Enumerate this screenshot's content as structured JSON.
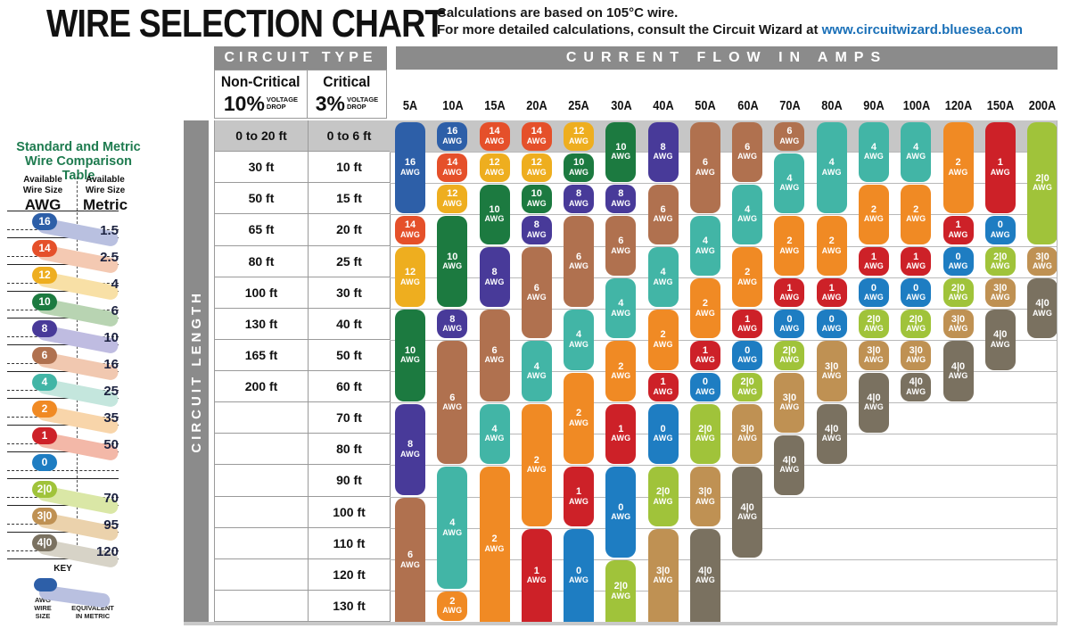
{
  "title": "WIRE SELECTION CHART",
  "subtitle": {
    "line1": "Calculations are based on 105°C wire.",
    "line2_prefix": "For more detailed calculations, consult the Circuit Wizard at ",
    "link": "www.circuitwizard.bluesea.com"
  },
  "comparison": {
    "title": "Standard and Metric\nWire Comparison Table",
    "available_header": "Available\nWire Size",
    "unit_awg": "AWG",
    "unit_metric": "Metric",
    "rows": [
      {
        "awg": "16",
        "metric": "1.5"
      },
      {
        "awg": "14",
        "metric": "2.5"
      },
      {
        "awg": "12",
        "metric": "4"
      },
      {
        "awg": "10",
        "metric": "6"
      },
      {
        "awg": "8",
        "metric": "10"
      },
      {
        "awg": "6",
        "metric": "16"
      },
      {
        "awg": "4",
        "metric": "25"
      },
      {
        "awg": "2",
        "metric": "35"
      },
      {
        "awg": "1",
        "metric": "50"
      },
      {
        "awg": "0",
        "metric": ""
      },
      {
        "awg": "2|0",
        "metric": "70"
      },
      {
        "awg": "3|0",
        "metric": "95"
      },
      {
        "awg": "4|0",
        "metric": "120"
      }
    ],
    "key": {
      "label": "KEY",
      "left": "AWG\nWIRE\nSIZE",
      "right": "CLOSEST\nEQUIVALENT\nIN METRIC"
    }
  },
  "table": {
    "circuit_type_label": "CIRCUIT TYPE",
    "current_flow_label": "CURRENT FLOW IN AMPS",
    "circuit_length_label": "CIRCUIT LENGTH",
    "non_critical_label": "Non-Critical",
    "non_critical_pct": "10%",
    "critical_label": "Critical",
    "critical_pct": "3%",
    "voltage_drop": "VOLTAGE\nDROP",
    "awg_suffix": "AWG",
    "gauge_colors": {
      "16": "#2d5fa8",
      "14": "#e5502a",
      "12": "#eeae1f",
      "10": "#1c7a40",
      "8": "#483a99",
      "6": "#b0714f",
      "4": "#42b5a6",
      "2": "#f08a24",
      "1": "#cd2128",
      "0": "#1e7dc2",
      "2|0": "#a0c33a",
      "3|0": "#bf9153",
      "4|0": "#7a7160"
    },
    "band_colors": {
      "16": "#b9c0e0",
      "14": "#f4c9b2",
      "12": "#f8e0a6",
      "10": "#b8d4b2",
      "8": "#bfbce1",
      "6": "#f1c8b0",
      "4": "#c4e6dd",
      "2": "#f8d5aa",
      "1": "#f3b8a8",
      "0": "",
      "2|0": "#dae7a6",
      "3|0": "#ebd2ac",
      "4|0": "#d7d3c7"
    }
  },
  "chart_data": {
    "type": "table",
    "title": "WIRE SELECTION CHART",
    "x_axis": "Current flow in amps",
    "y_axis": "Circuit length",
    "amps": [
      "5A",
      "10A",
      "15A",
      "20A",
      "25A",
      "30A",
      "40A",
      "50A",
      "60A",
      "70A",
      "80A",
      "90A",
      "100A",
      "120A",
      "150A",
      "200A"
    ],
    "length_rows": [
      {
        "non_critical": "0 to 20 ft",
        "critical": "0 to 6 ft"
      },
      {
        "non_critical": "30 ft",
        "critical": "10 ft"
      },
      {
        "non_critical": "50 ft",
        "critical": "15 ft"
      },
      {
        "non_critical": "65 ft",
        "critical": "20 ft"
      },
      {
        "non_critical": "80 ft",
        "critical": "25 ft"
      },
      {
        "non_critical": "100 ft",
        "critical": "30 ft"
      },
      {
        "non_critical": "130 ft",
        "critical": "40 ft"
      },
      {
        "non_critical": "165 ft",
        "critical": "50 ft"
      },
      {
        "non_critical": "200 ft",
        "critical": "60 ft"
      },
      {
        "non_critical": "",
        "critical": "70 ft"
      },
      {
        "non_critical": "",
        "critical": "80 ft"
      },
      {
        "non_critical": "",
        "critical": "90 ft"
      },
      {
        "non_critical": "",
        "critical": "100 ft"
      },
      {
        "non_critical": "",
        "critical": "110 ft"
      },
      {
        "non_critical": "",
        "critical": "120 ft"
      },
      {
        "non_critical": "",
        "critical": "130 ft"
      }
    ],
    "columns": [
      {
        "amp": "5A",
        "segments": [
          {
            "gauge": "16",
            "from": 1,
            "to": 3
          },
          {
            "gauge": "14",
            "from": 4,
            "to": 4
          },
          {
            "gauge": "12",
            "from": 5,
            "to": 6
          },
          {
            "gauge": "10",
            "from": 7,
            "to": 9
          },
          {
            "gauge": "8",
            "from": 10,
            "to": 12
          },
          {
            "gauge": "6",
            "from": 13,
            "to": 16
          }
        ]
      },
      {
        "amp": "10A",
        "segments": [
          {
            "gauge": "16",
            "from": 1,
            "to": 1
          },
          {
            "gauge": "14",
            "from": 2,
            "to": 2
          },
          {
            "gauge": "12",
            "from": 3,
            "to": 3
          },
          {
            "gauge": "10",
            "from": 4,
            "to": 6
          },
          {
            "gauge": "8",
            "from": 7,
            "to": 7
          },
          {
            "gauge": "6",
            "from": 8,
            "to": 11
          },
          {
            "gauge": "4",
            "from": 12,
            "to": 15
          },
          {
            "gauge": "2",
            "from": 16,
            "to": 16
          }
        ]
      },
      {
        "amp": "15A",
        "segments": [
          {
            "gauge": "14",
            "from": 1,
            "to": 1
          },
          {
            "gauge": "12",
            "from": 2,
            "to": 2
          },
          {
            "gauge": "10",
            "from": 3,
            "to": 4
          },
          {
            "gauge": "8",
            "from": 5,
            "to": 6
          },
          {
            "gauge": "6",
            "from": 7,
            "to": 9
          },
          {
            "gauge": "4",
            "from": 10,
            "to": 11
          },
          {
            "gauge": "2",
            "from": 12,
            "to": 16
          }
        ]
      },
      {
        "amp": "20A",
        "segments": [
          {
            "gauge": "14",
            "from": 1,
            "to": 1
          },
          {
            "gauge": "12",
            "from": 2,
            "to": 2
          },
          {
            "gauge": "10",
            "from": 3,
            "to": 3
          },
          {
            "gauge": "8",
            "from": 4,
            "to": 4
          },
          {
            "gauge": "6",
            "from": 5,
            "to": 7
          },
          {
            "gauge": "4",
            "from": 8,
            "to": 9
          },
          {
            "gauge": "2",
            "from": 10,
            "to": 13
          },
          {
            "gauge": "1",
            "from": 14,
            "to": 16
          }
        ]
      },
      {
        "amp": "25A",
        "segments": [
          {
            "gauge": "12",
            "from": 1,
            "to": 1
          },
          {
            "gauge": "10",
            "from": 2,
            "to": 2
          },
          {
            "gauge": "8",
            "from": 3,
            "to": 3
          },
          {
            "gauge": "6",
            "from": 4,
            "to": 6
          },
          {
            "gauge": "4",
            "from": 7,
            "to": 8
          },
          {
            "gauge": "2",
            "from": 9,
            "to": 11
          },
          {
            "gauge": "1",
            "from": 12,
            "to": 13
          },
          {
            "gauge": "0",
            "from": 14,
            "to": 16
          }
        ]
      },
      {
        "amp": "30A",
        "segments": [
          {
            "gauge": "10",
            "from": 1,
            "to": 2
          },
          {
            "gauge": "8",
            "from": 3,
            "to": 3
          },
          {
            "gauge": "6",
            "from": 4,
            "to": 5
          },
          {
            "gauge": "4",
            "from": 6,
            "to": 7
          },
          {
            "gauge": "2",
            "from": 8,
            "to": 9
          },
          {
            "gauge": "1",
            "from": 10,
            "to": 11
          },
          {
            "gauge": "0",
            "from": 12,
            "to": 14
          },
          {
            "gauge": "2|0",
            "from": 15,
            "to": 16
          }
        ]
      },
      {
        "amp": "40A",
        "segments": [
          {
            "gauge": "8",
            "from": 1,
            "to": 2
          },
          {
            "gauge": "6",
            "from": 3,
            "to": 4
          },
          {
            "gauge": "4",
            "from": 5,
            "to": 6
          },
          {
            "gauge": "2",
            "from": 7,
            "to": 8
          },
          {
            "gauge": "1",
            "from": 9,
            "to": 9
          },
          {
            "gauge": "0",
            "from": 10,
            "to": 11
          },
          {
            "gauge": "2|0",
            "from": 12,
            "to": 13
          },
          {
            "gauge": "3|0",
            "from": 14,
            "to": 16
          }
        ]
      },
      {
        "amp": "50A",
        "segments": [
          {
            "gauge": "6",
            "from": 1,
            "to": 3
          },
          {
            "gauge": "4",
            "from": 4,
            "to": 5
          },
          {
            "gauge": "2",
            "from": 6,
            "to": 7
          },
          {
            "gauge": "1",
            "from": 8,
            "to": 8
          },
          {
            "gauge": "0",
            "from": 9,
            "to": 9
          },
          {
            "gauge": "2|0",
            "from": 10,
            "to": 11
          },
          {
            "gauge": "3|0",
            "from": 12,
            "to": 13
          },
          {
            "gauge": "4|0",
            "from": 14,
            "to": 16
          }
        ]
      },
      {
        "amp": "60A",
        "segments": [
          {
            "gauge": "6",
            "from": 1,
            "to": 2
          },
          {
            "gauge": "4",
            "from": 3,
            "to": 4
          },
          {
            "gauge": "2",
            "from": 5,
            "to": 6
          },
          {
            "gauge": "1",
            "from": 7,
            "to": 7
          },
          {
            "gauge": "0",
            "from": 8,
            "to": 8
          },
          {
            "gauge": "2|0",
            "from": 9,
            "to": 9
          },
          {
            "gauge": "3|0",
            "from": 10,
            "to": 11
          },
          {
            "gauge": "4|0",
            "from": 12,
            "to": 14
          }
        ]
      },
      {
        "amp": "70A",
        "segments": [
          {
            "gauge": "6",
            "from": 1,
            "to": 1
          },
          {
            "gauge": "4",
            "from": 2,
            "to": 3
          },
          {
            "gauge": "2",
            "from": 4,
            "to": 5
          },
          {
            "gauge": "1",
            "from": 6,
            "to": 6
          },
          {
            "gauge": "0",
            "from": 7,
            "to": 7
          },
          {
            "gauge": "2|0",
            "from": 8,
            "to": 8
          },
          {
            "gauge": "3|0",
            "from": 9,
            "to": 10
          },
          {
            "gauge": "4|0",
            "from": 11,
            "to": 12
          }
        ]
      },
      {
        "amp": "80A",
        "segments": [
          {
            "gauge": "4",
            "from": 1,
            "to": 3
          },
          {
            "gauge": "2",
            "from": 4,
            "to": 5
          },
          {
            "gauge": "1",
            "from": 6,
            "to": 6
          },
          {
            "gauge": "0",
            "from": 7,
            "to": 7
          },
          {
            "gauge": "3|0",
            "from": 8,
            "to": 9
          },
          {
            "gauge": "4|0",
            "from": 10,
            "to": 11
          }
        ]
      },
      {
        "amp": "90A",
        "segments": [
          {
            "gauge": "4",
            "from": 1,
            "to": 2
          },
          {
            "gauge": "2",
            "from": 3,
            "to": 4
          },
          {
            "gauge": "1",
            "from": 5,
            "to": 5
          },
          {
            "gauge": "0",
            "from": 6,
            "to": 6
          },
          {
            "gauge": "2|0",
            "from": 7,
            "to": 7
          },
          {
            "gauge": "3|0",
            "from": 8,
            "to": 8
          },
          {
            "gauge": "4|0",
            "from": 9,
            "to": 10
          }
        ]
      },
      {
        "amp": "100A",
        "segments": [
          {
            "gauge": "4",
            "from": 1,
            "to": 2
          },
          {
            "gauge": "2",
            "from": 3,
            "to": 4
          },
          {
            "gauge": "1",
            "from": 5,
            "to": 5
          },
          {
            "gauge": "0",
            "from": 6,
            "to": 6
          },
          {
            "gauge": "2|0",
            "from": 7,
            "to": 7
          },
          {
            "gauge": "3|0",
            "from": 8,
            "to": 8
          },
          {
            "gauge": "4|0",
            "from": 9,
            "to": 9
          }
        ]
      },
      {
        "amp": "120A",
        "segments": [
          {
            "gauge": "2",
            "from": 1,
            "to": 3
          },
          {
            "gauge": "1",
            "from": 4,
            "to": 4
          },
          {
            "gauge": "0",
            "from": 5,
            "to": 5
          },
          {
            "gauge": "2|0",
            "from": 6,
            "to": 6
          },
          {
            "gauge": "3|0",
            "from": 7,
            "to": 7
          },
          {
            "gauge": "4|0",
            "from": 8,
            "to": 9
          }
        ]
      },
      {
        "amp": "150A",
        "segments": [
          {
            "gauge": "1",
            "from": 1,
            "to": 3
          },
          {
            "gauge": "0",
            "from": 4,
            "to": 4
          },
          {
            "gauge": "2|0",
            "from": 5,
            "to": 5
          },
          {
            "gauge": "3|0",
            "from": 6,
            "to": 6
          },
          {
            "gauge": "4|0",
            "from": 7,
            "to": 8
          }
        ]
      },
      {
        "amp": "200A",
        "segments": [
          {
            "gauge": "2|0",
            "from": 1,
            "to": 4
          },
          {
            "gauge": "3|0",
            "from": 5,
            "to": 5
          },
          {
            "gauge": "4|0",
            "from": 6,
            "to": 7
          }
        ]
      }
    ]
  }
}
